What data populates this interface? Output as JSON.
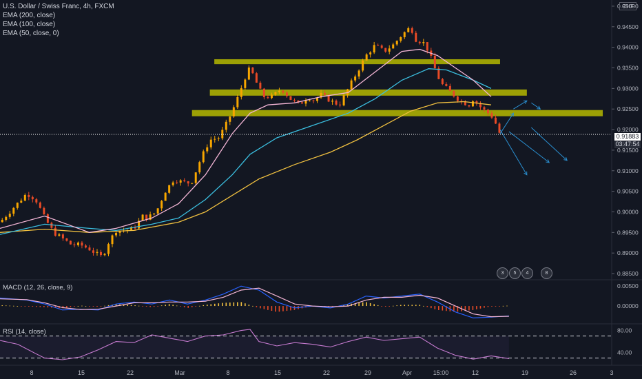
{
  "header": {
    "symbol": "U.S. Dollar / Swiss Franc, 4h, FXCM",
    "indicators": [
      "EMA (200, close)",
      "EMA (100, close)",
      "EMA (50, close, 0)"
    ],
    "currency": "CHF"
  },
  "price_tag": {
    "value": "0.91883",
    "countdown": "03:47:54"
  },
  "events": [
    "3",
    "5",
    "4",
    "8"
  ],
  "macd_label": "MACD (12, 26, close, 9)",
  "rsi_label": "RSI (14, close)",
  "colors": {
    "background": "#131722",
    "up": "#f7a600",
    "down": "#e84a26",
    "ema50": "#f4b6d6",
    "ema100": "#3bbfe0",
    "ema200": "#f0c040",
    "zone": "#b5b800",
    "macd": "#2962ff",
    "signal": "#f4b6d6",
    "rsi": "#c77bd1",
    "arrow": "#2a8fd0"
  },
  "chart_data": [
    {
      "type": "candlestick",
      "title": "U.S. Dollar / Swiss Franc, 4h, FXCM",
      "y_ticks": [
        "0.95000",
        "0.94500",
        "0.94000",
        "0.93500",
        "0.93000",
        "0.92500",
        "0.92000",
        "0.91500",
        "0.91000",
        "0.90500",
        "0.90000",
        "0.89500",
        "0.89000",
        "0.88500"
      ],
      "x_ticks": [
        "8",
        "15",
        "22",
        "Mar",
        "8",
        "15",
        "22",
        "29",
        "Apr",
        "15:00",
        "12",
        "19",
        "26",
        "3"
      ],
      "ylim": [
        0.8835,
        0.9515
      ],
      "last_price": 0.91883,
      "close_path": [
        {
          "d": 0,
          "v": 0.8975
        },
        {
          "d": 3,
          "v": 0.901
        },
        {
          "d": 6,
          "v": 0.9045
        },
        {
          "d": 8,
          "v": 0.903
        },
        {
          "d": 10,
          "v": 0.8985
        },
        {
          "d": 12,
          "v": 0.895
        },
        {
          "d": 14,
          "v": 0.8935
        },
        {
          "d": 16,
          "v": 0.892
        },
        {
          "d": 18,
          "v": 0.892
        },
        {
          "d": 20,
          "v": 0.891
        },
        {
          "d": 22,
          "v": 0.8895
        },
        {
          "d": 23,
          "v": 0.889
        },
        {
          "d": 24,
          "v": 0.892
        },
        {
          "d": 26,
          "v": 0.8955
        },
        {
          "d": 28,
          "v": 0.8955
        },
        {
          "d": 30,
          "v": 0.896
        },
        {
          "d": 32,
          "v": 0.899
        },
        {
          "d": 33,
          "v": 0.8985
        },
        {
          "d": 35,
          "v": 0.9
        },
        {
          "d": 37,
          "v": 0.905
        },
        {
          "d": 39,
          "v": 0.908
        },
        {
          "d": 40,
          "v": 0.9075
        },
        {
          "d": 42,
          "v": 0.907
        },
        {
          "d": 43,
          "v": 0.9075
        },
        {
          "d": 45,
          "v": 0.913
        },
        {
          "d": 47,
          "v": 0.9175
        },
        {
          "d": 49,
          "v": 0.918
        },
        {
          "d": 51,
          "v": 0.922
        },
        {
          "d": 53,
          "v": 0.927
        },
        {
          "d": 55,
          "v": 0.933
        },
        {
          "d": 56,
          "v": 0.935
        },
        {
          "d": 58,
          "v": 0.93
        },
        {
          "d": 59,
          "v": 0.928
        },
        {
          "d": 61,
          "v": 0.928
        },
        {
          "d": 63,
          "v": 0.93
        },
        {
          "d": 65,
          "v": 0.9275
        },
        {
          "d": 67,
          "v": 0.926
        },
        {
          "d": 69,
          "v": 0.928
        },
        {
          "d": 70,
          "v": 0.927
        },
        {
          "d": 72,
          "v": 0.9285
        },
        {
          "d": 74,
          "v": 0.927
        },
        {
          "d": 76,
          "v": 0.926
        },
        {
          "d": 78,
          "v": 0.93
        },
        {
          "d": 80,
          "v": 0.934
        },
        {
          "d": 82,
          "v": 0.938
        },
        {
          "d": 84,
          "v": 0.9405
        },
        {
          "d": 86,
          "v": 0.939
        },
        {
          "d": 88,
          "v": 0.9405
        },
        {
          "d": 90,
          "v": 0.943
        },
        {
          "d": 92,
          "v": 0.945
        },
        {
          "d": 93,
          "v": 0.942
        },
        {
          "d": 95,
          "v": 0.941
        },
        {
          "d": 96,
          "v": 0.939
        },
        {
          "d": 97,
          "v": 0.936
        },
        {
          "d": 98,
          "v": 0.933
        },
        {
          "d": 99,
          "v": 0.931
        },
        {
          "d": 101,
          "v": 0.929
        },
        {
          "d": 103,
          "v": 0.927
        },
        {
          "d": 105,
          "v": 0.926
        },
        {
          "d": 106,
          "v": 0.9275
        },
        {
          "d": 108,
          "v": 0.925
        },
        {
          "d": 110,
          "v": 0.9235
        },
        {
          "d": 111,
          "v": 0.9215
        },
        {
          "d": 112,
          "v": 0.91883
        }
      ],
      "ema50": [
        [
          0,
          0.896
        ],
        [
          10,
          0.899
        ],
        [
          20,
          0.895
        ],
        [
          26,
          0.896
        ],
        [
          34,
          0.8985
        ],
        [
          40,
          0.902
        ],
        [
          46,
          0.909
        ],
        [
          52,
          0.919
        ],
        [
          56,
          0.924
        ],
        [
          60,
          0.926
        ],
        [
          66,
          0.9265
        ],
        [
          72,
          0.928
        ],
        [
          78,
          0.929
        ],
        [
          84,
          0.934
        ],
        [
          90,
          0.939
        ],
        [
          94,
          0.9395
        ],
        [
          98,
          0.938
        ],
        [
          102,
          0.935
        ],
        [
          106,
          0.932
        ],
        [
          110,
          0.928
        ]
      ],
      "ema100": [
        [
          0,
          0.8945
        ],
        [
          10,
          0.897
        ],
        [
          20,
          0.896
        ],
        [
          26,
          0.8955
        ],
        [
          34,
          0.897
        ],
        [
          40,
          0.8985
        ],
        [
          46,
          0.903
        ],
        [
          52,
          0.909
        ],
        [
          56,
          0.914
        ],
        [
          62,
          0.918
        ],
        [
          70,
          0.921
        ],
        [
          78,
          0.924
        ],
        [
          84,
          0.9275
        ],
        [
          90,
          0.932
        ],
        [
          96,
          0.9348
        ],
        [
          100,
          0.9345
        ],
        [
          106,
          0.932
        ],
        [
          110,
          0.93
        ]
      ],
      "ema200": [
        [
          0,
          0.895
        ],
        [
          10,
          0.8958
        ],
        [
          20,
          0.895
        ],
        [
          30,
          0.8955
        ],
        [
          40,
          0.8975
        ],
        [
          46,
          0.9
        ],
        [
          52,
          0.904
        ],
        [
          58,
          0.908
        ],
        [
          66,
          0.9115
        ],
        [
          74,
          0.9145
        ],
        [
          80,
          0.9175
        ],
        [
          86,
          0.921
        ],
        [
          92,
          0.9245
        ],
        [
          98,
          0.9265
        ],
        [
          104,
          0.9268
        ],
        [
          110,
          0.926
        ]
      ],
      "zones": [
        {
          "d0": 48,
          "d1": 112,
          "v": 0.9365,
          "h": 0.0012
        },
        {
          "d0": 47,
          "d1": 118,
          "v": 0.929,
          "h": 0.0015
        },
        {
          "d0": 43,
          "d1": 135,
          "v": 0.924,
          "h": 0.0015
        }
      ],
      "arrows": [
        {
          "d0": 112,
          "v0": 0.92,
          "d1": 118,
          "v1": 0.909
        },
        {
          "d0": 114,
          "v0": 0.9195,
          "d1": 123,
          "v1": 0.912
        },
        {
          "d0": 119,
          "v0": 0.9205,
          "d1": 127,
          "v1": 0.9125
        },
        {
          "d0": 112,
          "v0": 0.919,
          "d1": 115,
          "v1": 0.924
        },
        {
          "d0": 115,
          "v0": 0.925,
          "d1": 118,
          "v1": 0.927
        },
        {
          "d0": 119,
          "v0": 0.9265,
          "d1": 121,
          "v1": 0.925
        }
      ]
    },
    {
      "type": "macd",
      "title": "MACD (12, 26, close, 9)",
      "y_ticks": [
        "0.00500",
        "0.00000"
      ],
      "ylim": [
        -0.0045,
        0.0066
      ],
      "macd": [
        [
          0,
          0.002
        ],
        [
          6,
          0.0015
        ],
        [
          10,
          0.0005
        ],
        [
          14,
          -0.001
        ],
        [
          18,
          -0.0008
        ],
        [
          22,
          -0.001
        ],
        [
          26,
          0.0005
        ],
        [
          30,
          0.001
        ],
        [
          34,
          0.0005
        ],
        [
          38,
          0.0015
        ],
        [
          42,
          0.0005
        ],
        [
          46,
          0.0015
        ],
        [
          50,
          0.003
        ],
        [
          54,
          0.005
        ],
        [
          58,
          0.004
        ],
        [
          62,
          0.001
        ],
        [
          66,
          -0.0005
        ],
        [
          70,
          0.0
        ],
        [
          74,
          -0.0005
        ],
        [
          78,
          0.0005
        ],
        [
          82,
          0.0025
        ],
        [
          86,
          0.002
        ],
        [
          90,
          0.0025
        ],
        [
          94,
          0.003
        ],
        [
          98,
          0.001
        ],
        [
          102,
          -0.0015
        ],
        [
          106,
          -0.003
        ],
        [
          110,
          -0.0028
        ],
        [
          114,
          -0.0025
        ]
      ],
      "signal": [
        [
          0,
          0.0018
        ],
        [
          6,
          0.0016
        ],
        [
          10,
          0.0008
        ],
        [
          14,
          -0.0004
        ],
        [
          18,
          -0.0009
        ],
        [
          22,
          -0.0008
        ],
        [
          26,
          0.0
        ],
        [
          30,
          0.0008
        ],
        [
          34,
          0.0008
        ],
        [
          38,
          0.001
        ],
        [
          42,
          0.001
        ],
        [
          46,
          0.0012
        ],
        [
          50,
          0.0022
        ],
        [
          54,
          0.004
        ],
        [
          58,
          0.0045
        ],
        [
          62,
          0.0025
        ],
        [
          66,
          0.0005
        ],
        [
          70,
          0.0
        ],
        [
          74,
          -0.0002
        ],
        [
          78,
          0.0
        ],
        [
          82,
          0.0015
        ],
        [
          86,
          0.0022
        ],
        [
          90,
          0.0022
        ],
        [
          94,
          0.0027
        ],
        [
          98,
          0.002
        ],
        [
          102,
          0.0
        ],
        [
          106,
          -0.002
        ],
        [
          110,
          -0.0027
        ],
        [
          114,
          -0.0026
        ]
      ]
    },
    {
      "type": "line",
      "title": "RSI (14, close)",
      "y_ticks": [
        "80.00",
        "40.00"
      ],
      "ylim": [
        17,
        92
      ],
      "bands": [
        70,
        30
      ],
      "rsi": [
        [
          0,
          62
        ],
        [
          4,
          55
        ],
        [
          8,
          38
        ],
        [
          10,
          30
        ],
        [
          14,
          27
        ],
        [
          18,
          32
        ],
        [
          22,
          45
        ],
        [
          26,
          60
        ],
        [
          30,
          58
        ],
        [
          34,
          72
        ],
        [
          38,
          66
        ],
        [
          42,
          60
        ],
        [
          46,
          70
        ],
        [
          50,
          72
        ],
        [
          54,
          80
        ],
        [
          56,
          82
        ],
        [
          58,
          60
        ],
        [
          62,
          52
        ],
        [
          66,
          58
        ],
        [
          70,
          55
        ],
        [
          74,
          50
        ],
        [
          78,
          60
        ],
        [
          82,
          68
        ],
        [
          86,
          62
        ],
        [
          90,
          65
        ],
        [
          94,
          68
        ],
        [
          98,
          48
        ],
        [
          102,
          35
        ],
        [
          106,
          28
        ],
        [
          110,
          34
        ],
        [
          114,
          29
        ]
      ]
    }
  ]
}
